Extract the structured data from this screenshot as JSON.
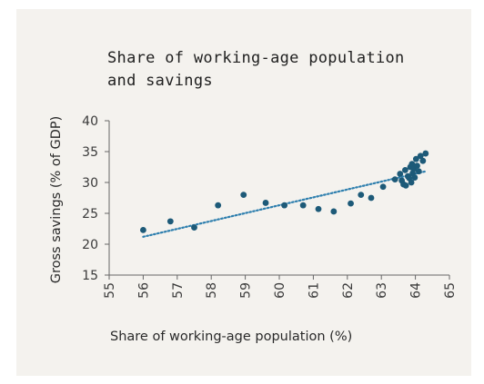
{
  "chart_data": {
    "type": "scatter",
    "title": "Share of working-age population\nand savings",
    "xlabel": "Share of working-age population (%)",
    "ylabel": "Gross savings (% of GDP)",
    "xlim": [
      55,
      65
    ],
    "ylim": [
      15,
      40
    ],
    "x_ticks": [
      55,
      56,
      57,
      58,
      59,
      60,
      61,
      62,
      63,
      64,
      65
    ],
    "y_ticks": [
      15,
      20,
      25,
      30,
      35,
      40
    ],
    "x_tick_labels": [
      "55",
      "56",
      "57",
      "58",
      "59",
      "60",
      "61",
      "62",
      "63",
      "64",
      "65"
    ],
    "y_tick_labels": [
      "15",
      "20",
      "25",
      "30",
      "35",
      "40"
    ],
    "grid": false,
    "colors": {
      "points": "#1d5a78",
      "trendline": "#2e7fae",
      "axis": "#666666"
    },
    "series": [
      {
        "points": [
          [
            56.0,
            22.3
          ],
          [
            56.8,
            23.7
          ],
          [
            57.5,
            22.7
          ],
          [
            58.2,
            26.3
          ],
          [
            58.95,
            28.0
          ],
          [
            59.6,
            26.7
          ],
          [
            60.15,
            26.3
          ],
          [
            60.7,
            26.3
          ],
          [
            61.15,
            25.7
          ],
          [
            61.6,
            25.3
          ],
          [
            62.1,
            26.6
          ],
          [
            62.4,
            28.0
          ],
          [
            62.7,
            27.5
          ],
          [
            63.05,
            29.3
          ],
          [
            63.4,
            30.5
          ],
          [
            63.55,
            31.4
          ],
          [
            63.6,
            30.3
          ],
          [
            63.65,
            29.7
          ],
          [
            63.7,
            32.0
          ],
          [
            63.72,
            29.5
          ],
          [
            63.78,
            31.0
          ],
          [
            63.82,
            30.7
          ],
          [
            63.85,
            32.5
          ],
          [
            63.88,
            30.0
          ],
          [
            63.9,
            33.0
          ],
          [
            63.92,
            31.5
          ],
          [
            63.95,
            32.2
          ],
          [
            63.98,
            30.8
          ],
          [
            64.02,
            33.8
          ],
          [
            64.05,
            32.7
          ],
          [
            64.1,
            31.8
          ],
          [
            64.15,
            34.3
          ],
          [
            64.22,
            33.5
          ],
          [
            64.3,
            34.7
          ]
        ]
      }
    ],
    "trendline": {
      "x": [
        56.0,
        64.3
      ],
      "y": [
        21.2,
        31.8
      ],
      "style": "dotted"
    }
  }
}
